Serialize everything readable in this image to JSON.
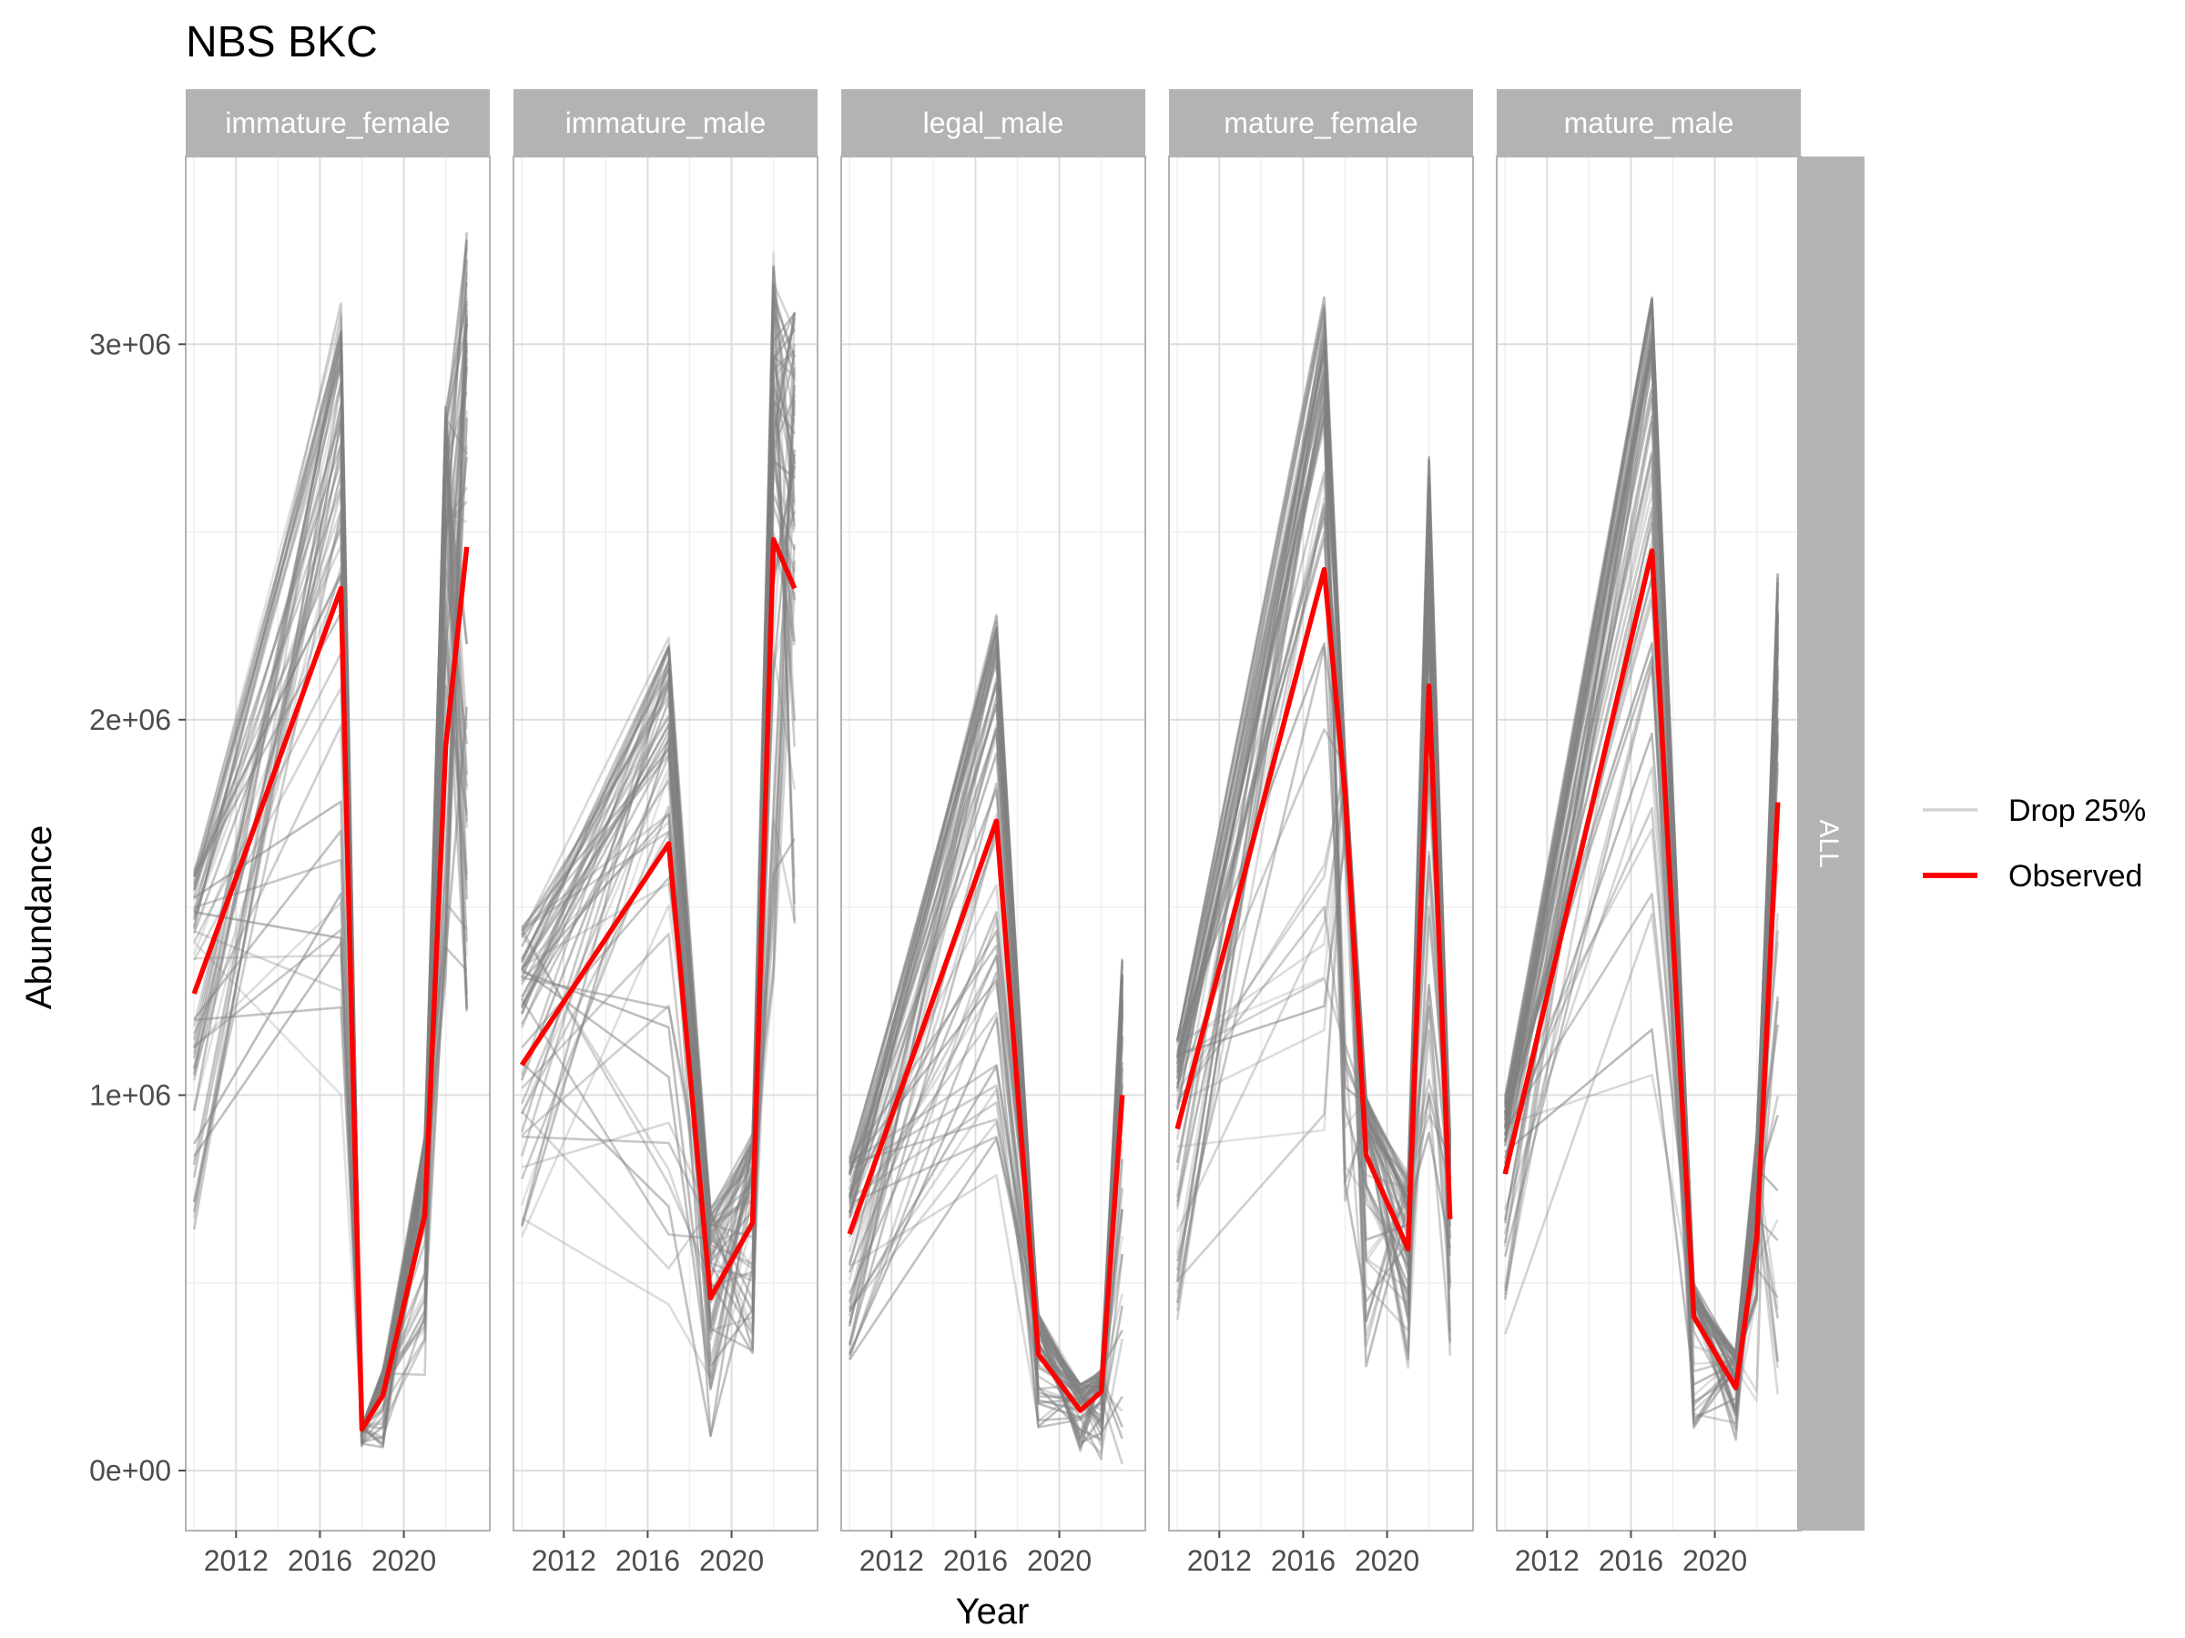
{
  "chart_data": {
    "type": "line",
    "title": "NBS BKC",
    "xlabel": "Year",
    "ylabel": "Abundance",
    "x_ticks": [
      2012,
      2016,
      2020
    ],
    "y_ticks": [
      {
        "value": 0,
        "label": "0e+00"
      },
      {
        "value": 1000000,
        "label": "1e+06"
      },
      {
        "value": 2000000,
        "label": "2e+06"
      },
      {
        "value": 3000000,
        "label": "3e+06"
      }
    ],
    "xlim": [
      2009.6,
      2024.1
    ],
    "ylim": [
      -160000,
      3500000
    ],
    "grid": true,
    "legend": {
      "position": "right",
      "entries": [
        {
          "label": "Drop 25%",
          "color": "#d3d3d3"
        },
        {
          "label": "Observed",
          "color": "#ff0000"
        }
      ]
    },
    "strip_right": "ALL",
    "colors": {
      "observed": "#ff0000",
      "drop": "#808080",
      "strip_bg": "#b3b3b3",
      "strip_text": "#ffffff",
      "grid_major": "#dedede",
      "grid_minor": "#efefef",
      "panel_border": "#b3b3b3",
      "axis_text": "#4d4d4d"
    },
    "drop_series_count_per_panel": 60,
    "panels": [
      {
        "label": "immature_female",
        "observed": {
          "x": [
            2010,
            2017,
            2018,
            2019,
            2021,
            2022,
            2023
          ],
          "y": [
            1270000,
            2350000,
            110000,
            200000,
            680000,
            1930000,
            2460000
          ]
        },
        "drop_band": {
          "low": [
            600000,
            1000000,
            60000,
            60000,
            250000,
            1300000,
            1200000
          ],
          "high": [
            1620000,
            3110000,
            120000,
            270000,
            900000,
            2850000,
            3300000
          ]
        }
      },
      {
        "label": "immature_male",
        "observed": {
          "x": [
            2010,
            2017,
            2019,
            2021,
            2022,
            2023
          ],
          "y": [
            1080000,
            1670000,
            460000,
            660000,
            2480000,
            2350000
          ]
        },
        "drop_band": {
          "low": [
            420000,
            400000,
            80000,
            300000,
            1300000,
            1400000
          ],
          "high": [
            1450000,
            2220000,
            700000,
            900000,
            3260000,
            3100000
          ]
        }
      },
      {
        "label": "legal_male",
        "observed": {
          "x": [
            2010,
            2017,
            2019,
            2021,
            2022,
            2023
          ],
          "y": [
            630000,
            1730000,
            310000,
            160000,
            210000,
            1000000
          ]
        },
        "drop_band": {
          "low": [
            280000,
            750000,
            110000,
            50000,
            30000,
            0
          ],
          "high": [
            840000,
            2280000,
            420000,
            230000,
            270000,
            1370000
          ]
        }
      },
      {
        "label": "mature_female",
        "observed": {
          "x": [
            2010,
            2017,
            2018,
            2019,
            2021,
            2022,
            2023
          ],
          "y": [
            910000,
            2400000,
            1800000,
            840000,
            590000,
            2090000,
            670000
          ]
        },
        "drop_band": {
          "low": [
            400000,
            900000,
            700000,
            260000,
            260000,
            800000,
            300000
          ],
          "high": [
            1150000,
            3140000,
            1900000,
            1000000,
            800000,
            2710000,
            900000
          ]
        }
      },
      {
        "label": "mature_male",
        "observed": {
          "x": [
            2010,
            2017,
            2019,
            2021,
            2022,
            2023
          ],
          "y": [
            790000,
            2450000,
            410000,
            220000,
            620000,
            1780000
          ]
        },
        "drop_band": {
          "low": [
            320000,
            1000000,
            110000,
            70000,
            180000,
            200000
          ],
          "high": [
            1000000,
            3130000,
            500000,
            320000,
            900000,
            2400000
          ]
        }
      }
    ]
  }
}
